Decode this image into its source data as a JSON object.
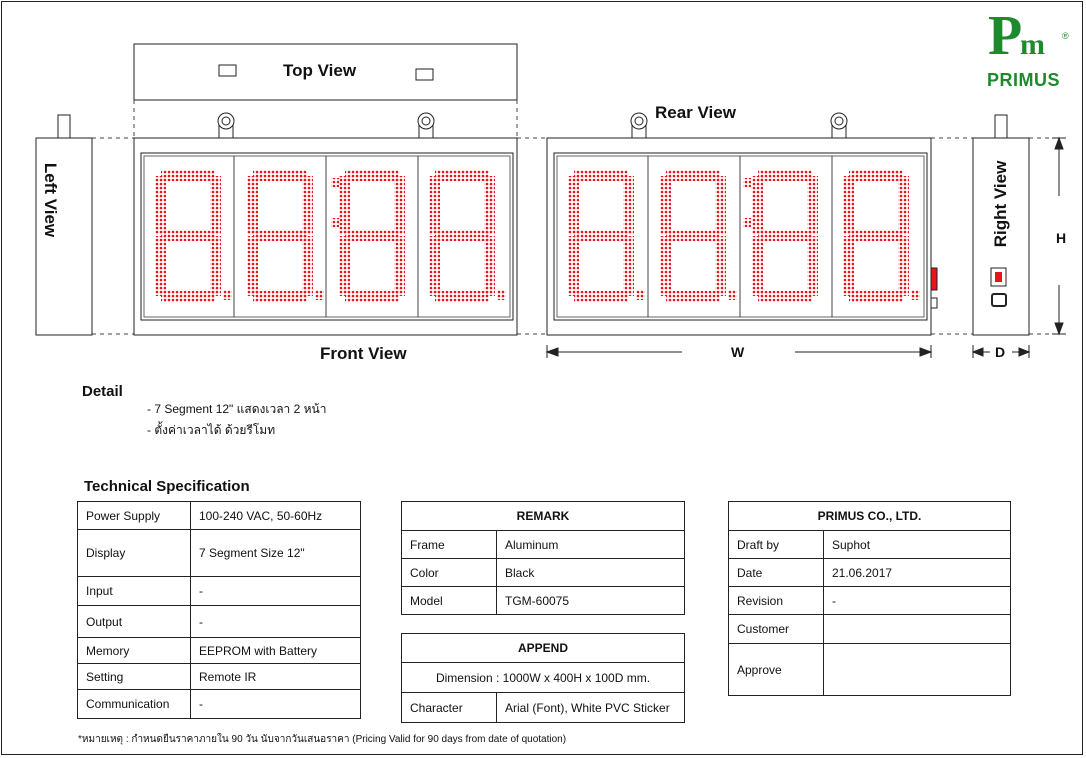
{
  "logo": {
    "mark_p": "P",
    "mark_m": "m",
    "mark_r": "®",
    "text": "PRIMUS"
  },
  "views": {
    "top": "Top View",
    "front": "Front View",
    "rear": "Rear View",
    "left": "Left View",
    "right": "Right View"
  },
  "dimension_labels": {
    "w": "W",
    "h": "H",
    "d": "D"
  },
  "display_digits": "8.8:8.8.",
  "colors": {
    "segment": "#e8141b",
    "logo": "#1e8a2e"
  },
  "detail": {
    "title": "Detail",
    "items": [
      "- 7 Segment 12\" แสดงเวลา 2 หน้า",
      "- ตั้งค่าเวลาได้ ด้วยรีโมท"
    ]
  },
  "spec": {
    "title": "Technical Specification",
    "rows": [
      [
        "Power Supply",
        "100-240 VAC, 50-60Hz"
      ],
      [
        "Display",
        "7 Segment Size 12\""
      ],
      [
        "Input",
        "-"
      ],
      [
        "Output",
        "-"
      ],
      [
        "Memory",
        "EEPROM with Battery"
      ],
      [
        "Setting",
        "Remote IR"
      ],
      [
        "Communication",
        "-"
      ]
    ]
  },
  "remark": {
    "title": "REMARK",
    "rows": [
      [
        "Frame",
        "Aluminum"
      ],
      [
        "Color",
        "Black"
      ],
      [
        "Model",
        "TGM-60075"
      ]
    ]
  },
  "append": {
    "title": "APPEND",
    "dimension": "Dimension : 1000W x 400H x 100D mm.",
    "character_label": "Character",
    "character_value": "Arial (Font), White PVC Sticker"
  },
  "company": {
    "title": "PRIMUS CO., LTD.",
    "rows": [
      [
        "Draft by",
        "Suphot"
      ],
      [
        "Date",
        "21.06.2017"
      ],
      [
        "Revision",
        "-"
      ],
      [
        "Customer",
        ""
      ],
      [
        "Approve",
        ""
      ]
    ]
  },
  "note": "*หมายเหตุ : กำหนดยืนราคาภายใน 90 วัน นับจากวันเสนอราคา  (Pricing Valid for 90 days from date of quotation)"
}
